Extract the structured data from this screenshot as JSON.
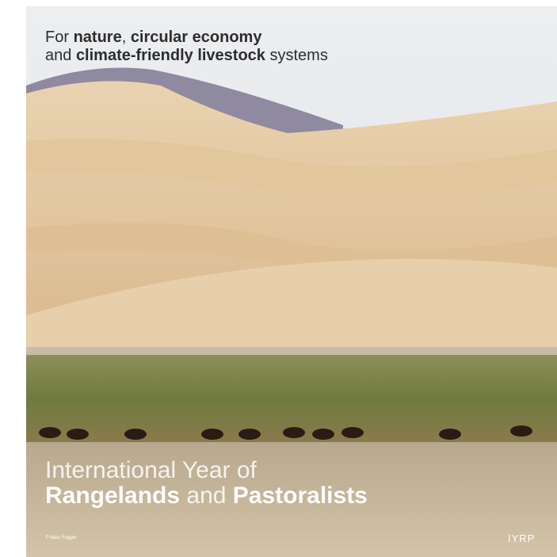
{
  "tagline": {
    "line1": [
      "For ",
      "nature",
      ", ",
      "circular economy"
    ],
    "line2": [
      "and ",
      "climate-friendly livestock",
      " systems"
    ]
  },
  "title": {
    "line1": "International Year of",
    "line2": [
      "Rangelands",
      " and ",
      "Pastoralists"
    ]
  },
  "credit": "© Marc Foggin",
  "logo": "IYRP"
}
